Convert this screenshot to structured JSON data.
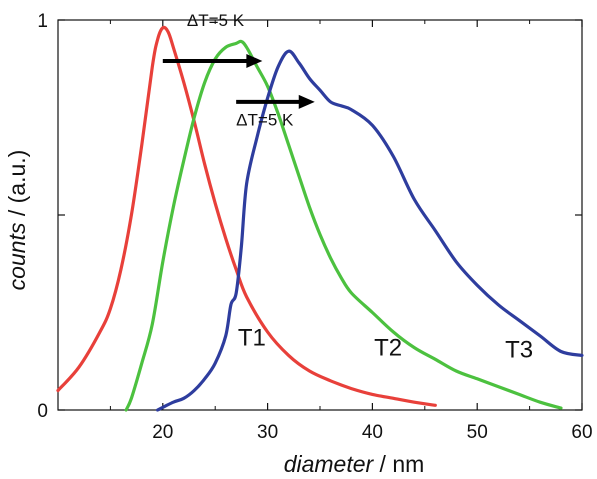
{
  "chart_data": {
    "type": "line",
    "xlabel_italic": "diameter",
    "xlabel_unit": " / nm",
    "ylabel_italic": "counts",
    "ylabel_unit": " / (a.u.)",
    "xlim": [
      10,
      60
    ],
    "ylim": [
      0,
      1
    ],
    "x_ticks": [
      "20",
      "30",
      "40",
      "50",
      "60"
    ],
    "x_tick_values": [
      20,
      30,
      40,
      50,
      60
    ],
    "y_ticks": [
      "0",
      "1"
    ],
    "y_tick_values": [
      0,
      1
    ],
    "y_minor_ticks": [
      0.5
    ],
    "x_minor_ticks": [
      10,
      15,
      25,
      35,
      45,
      55
    ],
    "grid": false,
    "legend": "none",
    "series": [
      {
        "name": "T1",
        "color": "#e8403a",
        "x": [
          10,
          12,
          14,
          15,
          16,
          17,
          18,
          19,
          19.5,
          20,
          20.5,
          21,
          22,
          23,
          24,
          25,
          26,
          27,
          28,
          30,
          32,
          34,
          36,
          38,
          40,
          42,
          44,
          46
        ],
        "y": [
          0.05,
          0.11,
          0.2,
          0.26,
          0.36,
          0.5,
          0.68,
          0.88,
          0.95,
          0.98,
          0.97,
          0.93,
          0.84,
          0.74,
          0.63,
          0.53,
          0.44,
          0.36,
          0.29,
          0.2,
          0.14,
          0.1,
          0.075,
          0.055,
          0.04,
          0.03,
          0.02,
          0.012
        ]
      },
      {
        "name": "T2",
        "color": "#4cc13f",
        "x": [
          16.5,
          17,
          18,
          19,
          20,
          21,
          22,
          23,
          24,
          25,
          26,
          27,
          27.5,
          28,
          29,
          30,
          31,
          32,
          33,
          34,
          35,
          36,
          37,
          38,
          40,
          42,
          44,
          46,
          48,
          50,
          52,
          54,
          56,
          58
        ],
        "y": [
          0.0,
          0.03,
          0.12,
          0.22,
          0.38,
          0.52,
          0.64,
          0.75,
          0.84,
          0.9,
          0.93,
          0.94,
          0.945,
          0.93,
          0.88,
          0.83,
          0.76,
          0.68,
          0.6,
          0.52,
          0.45,
          0.39,
          0.34,
          0.3,
          0.25,
          0.2,
          0.16,
          0.13,
          0.1,
          0.08,
          0.06,
          0.04,
          0.02,
          0.005
        ]
      },
      {
        "name": "T3",
        "color": "#2e3d9e",
        "x": [
          19.5,
          21,
          22,
          23,
          24,
          25,
          26,
          26.5,
          27,
          27.5,
          28,
          29,
          30,
          31,
          32,
          33,
          34,
          35,
          36,
          37,
          38,
          40,
          42,
          44,
          46,
          48,
          50,
          52,
          54,
          56,
          58,
          60
        ],
        "y": [
          0.0,
          0.02,
          0.03,
          0.05,
          0.08,
          0.12,
          0.19,
          0.27,
          0.3,
          0.42,
          0.58,
          0.7,
          0.8,
          0.88,
          0.92,
          0.89,
          0.85,
          0.82,
          0.79,
          0.78,
          0.77,
          0.73,
          0.65,
          0.54,
          0.46,
          0.38,
          0.32,
          0.27,
          0.23,
          0.19,
          0.15,
          0.14
        ]
      }
    ],
    "annotations": [
      {
        "text": "ΔT=5 K",
        "x": 22.3,
        "y": 0.985
      },
      {
        "text": "ΔT=5 K",
        "x": 27.0,
        "y": 0.73
      }
    ],
    "arrows": [
      {
        "from": [
          20,
          0.895
        ],
        "to": [
          29.5,
          0.895
        ]
      },
      {
        "from": [
          27,
          0.79
        ],
        "to": [
          34.5,
          0.79
        ]
      }
    ],
    "curve_labels": [
      {
        "text": "T1",
        "x": 28.5,
        "y": 0.165
      },
      {
        "text": "T2",
        "x": 41.5,
        "y": 0.14
      },
      {
        "text": "T3",
        "x": 54,
        "y": 0.135
      }
    ]
  }
}
